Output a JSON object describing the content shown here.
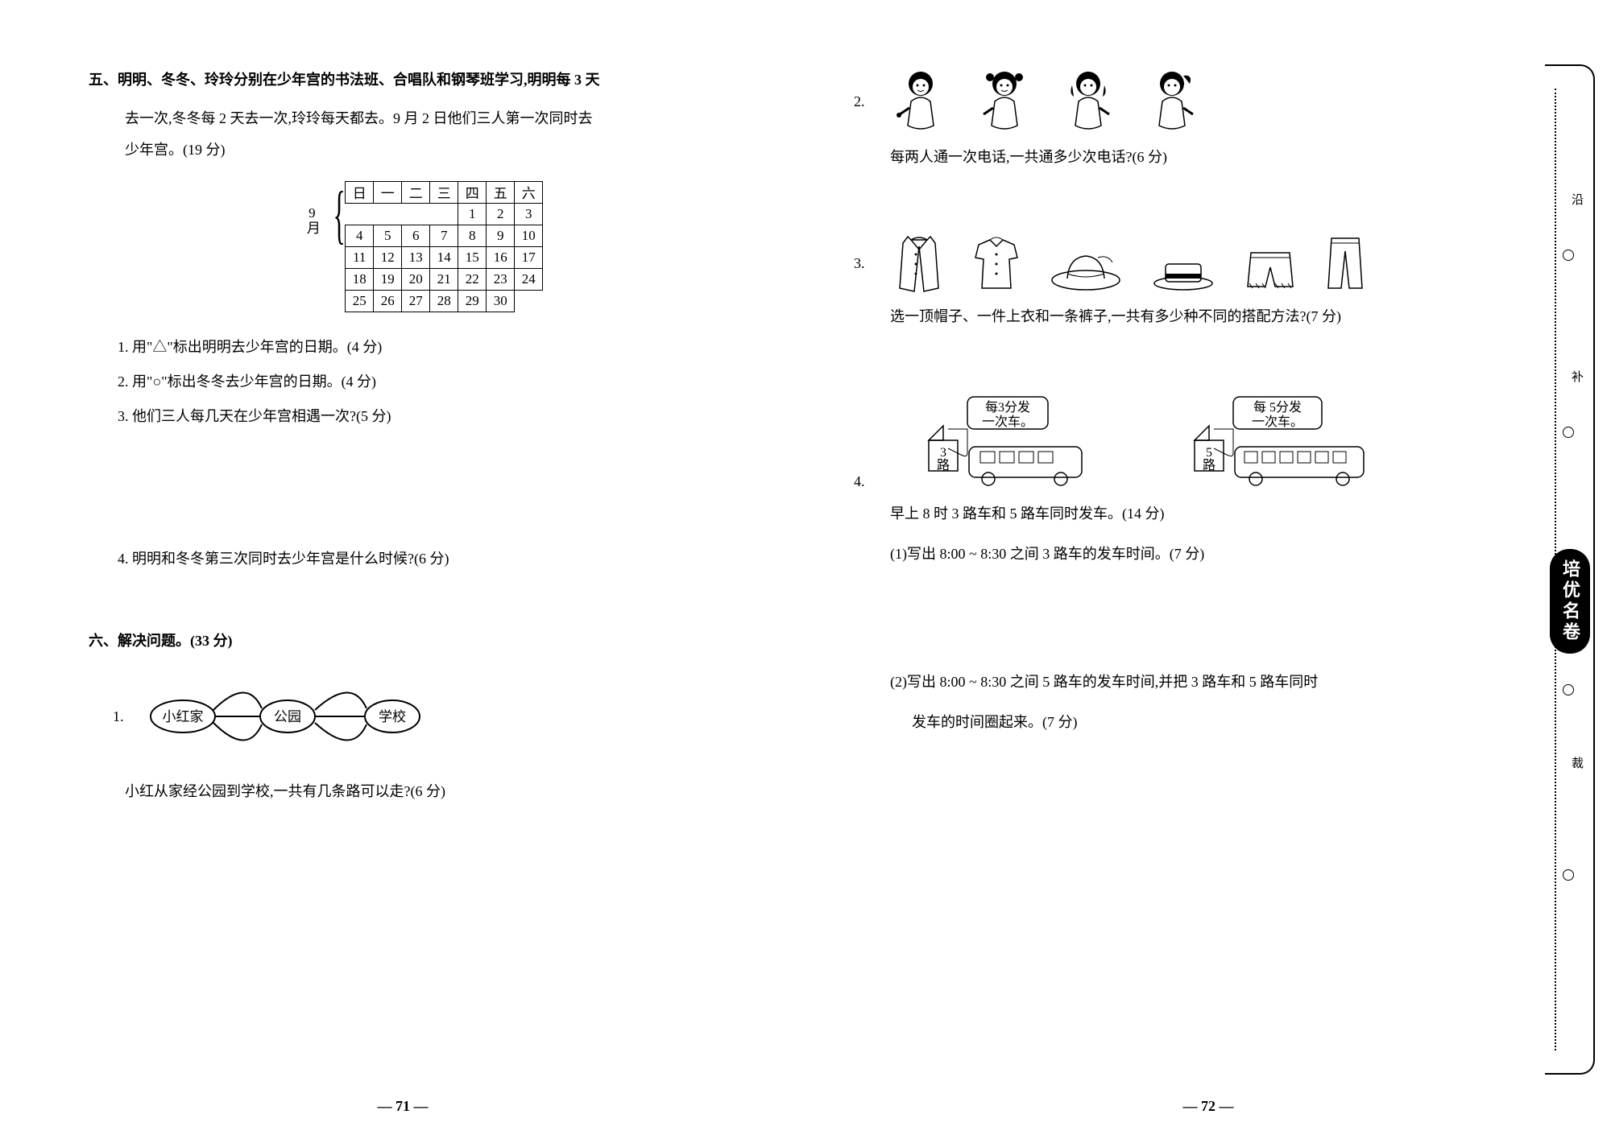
{
  "left": {
    "section5": {
      "header_l1": "五、明明、冬冬、玲玲分别在少年宫的书法班、合唱队和钢琴班学习,明明每 3 天",
      "header_l2": "去一次,冬冬每 2 天去一次,玲玲每天都去。9 月 2 日他们三人第一次同时去",
      "header_l3": "少年宫。(19 分)",
      "calendar": {
        "month": "9月",
        "weekdays": [
          "日",
          "一",
          "二",
          "三",
          "四",
          "五",
          "六"
        ],
        "rows": [
          [
            "",
            "",
            "",
            "",
            "1",
            "2",
            "3"
          ],
          [
            "4",
            "5",
            "6",
            "7",
            "8",
            "9",
            "10"
          ],
          [
            "11",
            "12",
            "13",
            "14",
            "15",
            "16",
            "17"
          ],
          [
            "18",
            "19",
            "20",
            "21",
            "22",
            "23",
            "24"
          ],
          [
            "25",
            "26",
            "27",
            "28",
            "29",
            "30",
            ""
          ]
        ]
      },
      "q1": "1. 用\"△\"标出明明去少年宫的日期。(4 分)",
      "q2": "2. 用\"○\"标出冬冬去少年宫的日期。(4 分)",
      "q3": "3. 他们三人每几天在少年宫相遇一次?(5 分)",
      "q4": "4. 明明和冬冬第三次同时去少年宫是什么时候?(6 分)"
    },
    "section6": {
      "header": "六、解决问题。(33 分)",
      "p1_num": "1.",
      "node_left": "小红家",
      "node_mid": "公园",
      "node_right": "学校",
      "p1_prompt": "小红从家经公园到学校,一共有几条路可以走?(6 分)"
    },
    "page_num": "— 71 —"
  },
  "right": {
    "p2": {
      "num": "2.",
      "prompt": "每两人通一次电话,一共通多少次电话?(6 分)"
    },
    "p3": {
      "num": "3.",
      "prompt": "选一顶帽子、一件上衣和一条裤子,一共有多少种不同的搭配方法?(7 分)"
    },
    "p4": {
      "num": "4.",
      "bus3_l1": "每3分发",
      "bus3_l2": "一次车。",
      "bus3_label": "3路",
      "bus5_l1": "每 5分发",
      "bus5_l2": "一次车。",
      "bus5_label": "5路",
      "setup": "早上 8 时 3 路车和 5 路车同时发车。(14 分)",
      "q1": "(1)写出 8:00 ~ 8:30 之间 3 路车的发车时间。(7 分)",
      "q2_l1": "(2)写出 8:00 ~ 8:30 之间 5 路车的发车时间,并把 3 路车和 5 路车同时",
      "q2_l2": "发车的时间圈起来。(7 分)"
    },
    "page_num": "— 72 —",
    "tab": {
      "top": "沿",
      "mid": "补",
      "logo": "培优名卷",
      "bot": "裁"
    }
  }
}
